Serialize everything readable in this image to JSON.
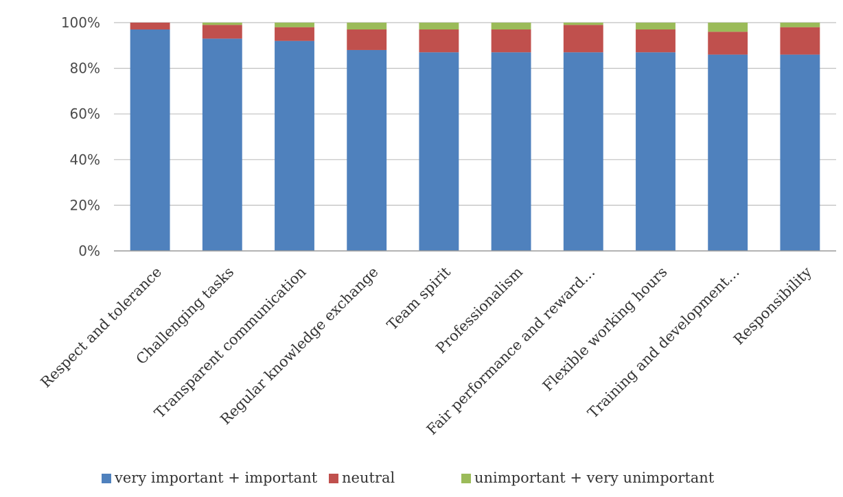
{
  "chart_data": {
    "type": "bar",
    "stacked": true,
    "categories": [
      "Respect and tolerance",
      "Challenging tasks",
      "Transparent communication",
      "Regular knowledge exchange",
      "Team spirit",
      "Professionalism",
      "Fair performance and reward…",
      "Flexible working hours",
      "Training and development…",
      "Responsibility"
    ],
    "series": [
      {
        "name": "very important + important",
        "color": "#4F81BD",
        "values": [
          97,
          93,
          92,
          88,
          87,
          87,
          87,
          87,
          86,
          86
        ]
      },
      {
        "name": "neutral",
        "color": "#C0504D",
        "values": [
          3,
          6,
          6,
          9,
          10,
          10,
          12,
          10,
          10,
          12
        ]
      },
      {
        "name": "unimportant + very unimportant",
        "color": "#9BBB59",
        "values": [
          0,
          1,
          2,
          3,
          3,
          3,
          1,
          3,
          4,
          2
        ]
      }
    ],
    "yticks": [
      "0%",
      "20%",
      "40%",
      "60%",
      "80%",
      "100%"
    ],
    "ylim": [
      0,
      100
    ],
    "grid": true,
    "legend_position": "bottom",
    "title": "",
    "xlabel": "",
    "ylabel": ""
  }
}
